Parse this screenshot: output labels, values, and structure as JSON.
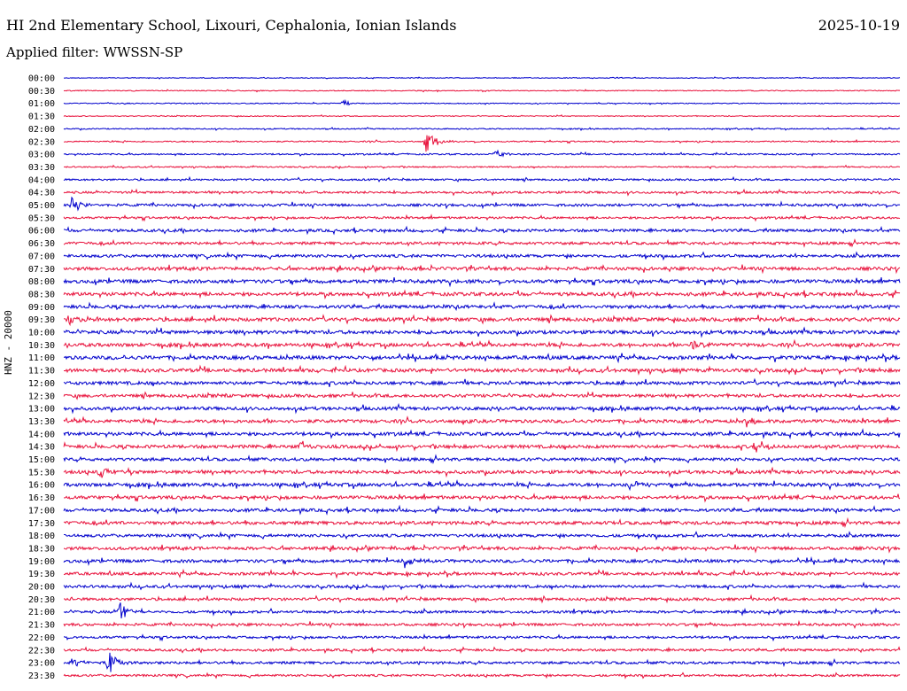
{
  "header": {
    "title": "HI 2nd Elementary School, Lixouri, Cephalonia, Ionian Islands",
    "date": "2025-10-19",
    "filter": "Applied filter: WWSSN-SP"
  },
  "chart_data": {
    "type": "line",
    "subtype": "helicorder",
    "ylabel": "HNZ - 20000",
    "row_labels": [
      "00:00",
      "00:30",
      "01:00",
      "01:30",
      "02:00",
      "02:30",
      "03:00",
      "03:30",
      "04:00",
      "04:30",
      "05:00",
      "05:30",
      "06:00",
      "06:30",
      "07:00",
      "07:30",
      "08:00",
      "08:30",
      "09:00",
      "09:30",
      "10:00",
      "10:30",
      "11:00",
      "11:30",
      "12:00",
      "12:30",
      "13:00",
      "13:30",
      "14:00",
      "14:30",
      "15:00",
      "15:30",
      "16:00",
      "16:30",
      "17:00",
      "17:30",
      "18:00",
      "18:30",
      "19:00",
      "19:30",
      "20:00",
      "20:30",
      "21:00",
      "21:30",
      "22:00",
      "22:30",
      "23:00",
      "23:30"
    ],
    "colors": [
      "#0000cc",
      "#e8123c"
    ],
    "noise_levels": [
      0.4,
      0.5,
      0.5,
      0.5,
      0.6,
      0.7,
      0.8,
      0.7,
      1.0,
      1.2,
      1.4,
      1.2,
      1.5,
      1.5,
      1.6,
      1.8,
      1.9,
      1.9,
      1.8,
      2.0,
      1.9,
      1.9,
      2.0,
      1.9,
      1.8,
      1.7,
      1.8,
      1.8,
      1.8,
      1.8,
      1.7,
      1.8,
      1.9,
      1.8,
      1.7,
      1.8,
      1.6,
      1.7,
      1.7,
      1.6,
      1.5,
      1.5,
      1.4,
      1.4,
      1.3,
      1.3,
      1.4,
      1.2
    ],
    "events": [
      {
        "row": 5,
        "minute": 13.0,
        "amplitude": 14
      },
      {
        "row": 10,
        "minute": 0.3,
        "amplitude": 9
      },
      {
        "row": 19,
        "minute": 0.2,
        "amplitude": 7
      },
      {
        "row": 29,
        "minute": 8.5,
        "amplitude": 7
      },
      {
        "row": 29,
        "minute": 24.8,
        "amplitude": 9
      },
      {
        "row": 31,
        "minute": 1.3,
        "amplitude": 7
      },
      {
        "row": 32,
        "minute": 20.3,
        "amplitude": 8
      },
      {
        "row": 38,
        "minute": 12.2,
        "amplitude": 10
      },
      {
        "row": 42,
        "minute": 2.0,
        "amplitude": 12
      },
      {
        "row": 46,
        "minute": 1.6,
        "amplitude": 16
      },
      {
        "row": 46,
        "minute": 0.3,
        "amplitude": 5
      },
      {
        "row": 21,
        "minute": 22.5,
        "amplitude": 6
      },
      {
        "row": 27,
        "minute": 24.5,
        "amplitude": 6
      },
      {
        "row": 2,
        "minute": 10.0,
        "amplitude": 4
      },
      {
        "row": 6,
        "minute": 15.5,
        "amplitude": 5
      }
    ],
    "xrange_minutes": [
      0,
      30
    ]
  }
}
